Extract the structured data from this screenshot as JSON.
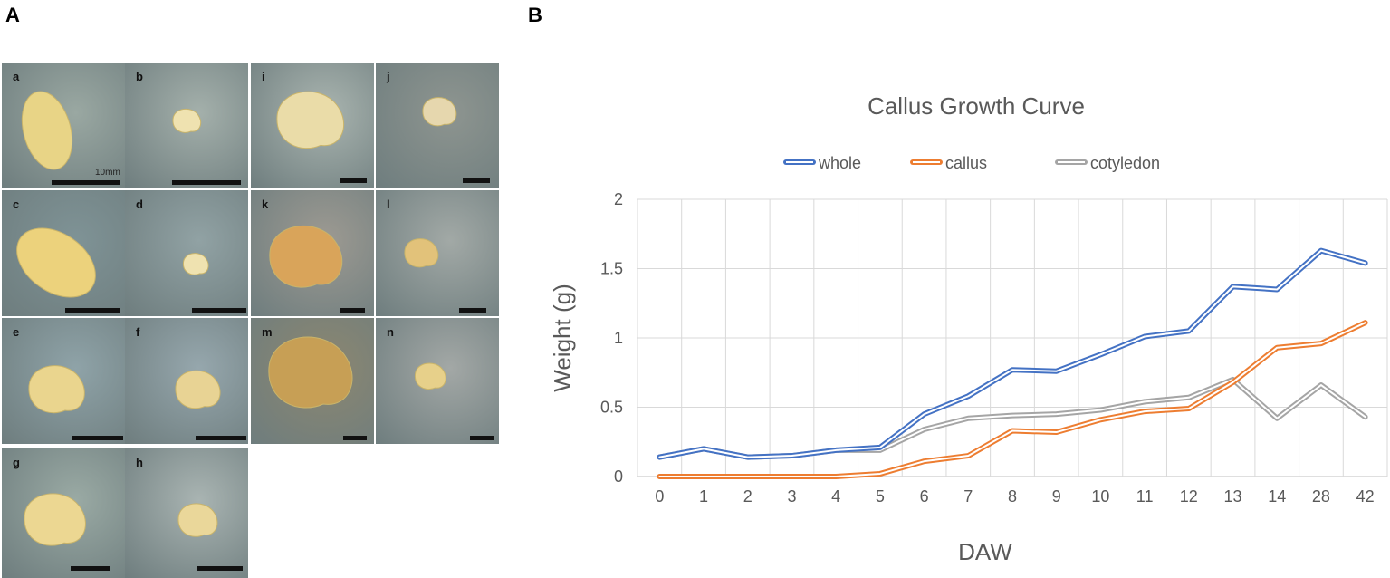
{
  "panels": {
    "a_label": "A",
    "b_label": "B"
  },
  "photos": [
    {
      "id": "a",
      "scale_text": "10mm",
      "bg": "#9aa8a2",
      "specimen": "#e8d486"
    },
    {
      "id": "b",
      "bg": "#a4b0ab",
      "specimen": "#efe2b0"
    },
    {
      "id": "c",
      "bg": "#7f9396",
      "specimen": "#ecd27c"
    },
    {
      "id": "d",
      "bg": "#91a2a4",
      "specimen": "#efe2b0"
    },
    {
      "id": "e",
      "bg": "#8fa3a8",
      "specimen": "#ead58e"
    },
    {
      "id": "f",
      "bg": "#96a7ad",
      "specimen": "#e8d394"
    },
    {
      "id": "g",
      "bg": "#9aaaa4",
      "specimen": "#ecd792"
    },
    {
      "id": "h",
      "bg": "#a9b4b2",
      "specimen": "#ead79a"
    },
    {
      "id": "i",
      "bg": "#aab5b0",
      "specimen": "#eadca8"
    },
    {
      "id": "j",
      "bg": "#8e9590",
      "specimen": "#e6d7ae"
    },
    {
      "id": "k",
      "bg": "#9d9a92",
      "specimen": "#d9a45a"
    },
    {
      "id": "l",
      "bg": "#a2a9a6",
      "specimen": "#e2c27a"
    },
    {
      "id": "m",
      "bg": "#8c8770",
      "specimen": "#c79f55"
    },
    {
      "id": "n",
      "bg": "#a3a8a6",
      "specimen": "#e7d08a"
    }
  ],
  "chart_data": {
    "type": "line",
    "title": "Callus Growth Curve",
    "xlabel": "DAW",
    "ylabel": "Weight (g)",
    "categories": [
      "0",
      "1",
      "2",
      "3",
      "4",
      "5",
      "6",
      "7",
      "8",
      "9",
      "10",
      "11",
      "12",
      "13",
      "14",
      "28",
      "42"
    ],
    "ylim": [
      0,
      2
    ],
    "yticks": [
      "0",
      "0.5",
      "1",
      "1.5",
      "2"
    ],
    "ytick_values": [
      0,
      0.5,
      1,
      1.5,
      2
    ],
    "grid": true,
    "legend_position": "top",
    "series": [
      {
        "name": "whole",
        "color": "#4472c4",
        "values": [
          0.14,
          0.2,
          0.14,
          0.15,
          0.19,
          0.21,
          0.45,
          0.58,
          0.77,
          0.76,
          0.88,
          1.01,
          1.05,
          1.37,
          1.35,
          1.63,
          1.54
        ]
      },
      {
        "name": "callus",
        "color": "#ed7d31",
        "values": [
          0,
          0,
          0,
          0,
          0,
          0.02,
          0.11,
          0.15,
          0.33,
          0.32,
          0.41,
          0.47,
          0.49,
          0.68,
          0.93,
          0.96,
          1.11
        ]
      },
      {
        "name": "cotyledon",
        "color": "#a5a5a5",
        "values": [
          0.14,
          0.2,
          0.14,
          0.15,
          0.19,
          0.19,
          0.34,
          0.42,
          0.44,
          0.45,
          0.48,
          0.54,
          0.57,
          0.7,
          0.42,
          0.66,
          0.43
        ]
      }
    ]
  }
}
